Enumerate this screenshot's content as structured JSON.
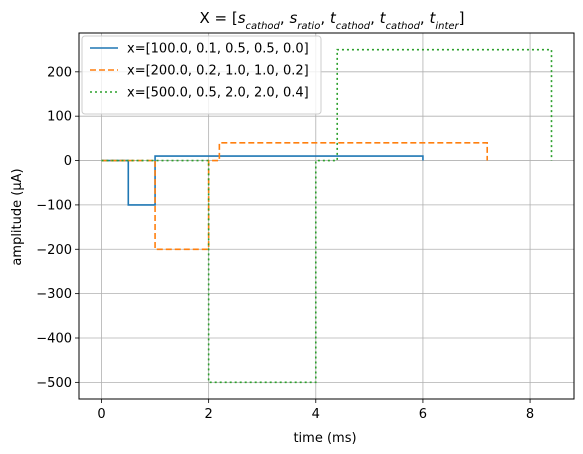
{
  "chart_data": {
    "type": "line",
    "title_parts": [
      {
        "text": "X = [",
        "italic": false,
        "sub": false
      },
      {
        "text": "s",
        "italic": true,
        "sub": false
      },
      {
        "text": "cathod",
        "italic": true,
        "sub": true
      },
      {
        "text": ", ",
        "italic": false,
        "sub": false
      },
      {
        "text": "s",
        "italic": true,
        "sub": false
      },
      {
        "text": "ratio",
        "italic": true,
        "sub": true
      },
      {
        "text": ", ",
        "italic": false,
        "sub": false
      },
      {
        "text": "t",
        "italic": true,
        "sub": false
      },
      {
        "text": "cathod",
        "italic": true,
        "sub": true
      },
      {
        "text": ", ",
        "italic": false,
        "sub": false
      },
      {
        "text": "t",
        "italic": true,
        "sub": false
      },
      {
        "text": "cathod",
        "italic": true,
        "sub": true
      },
      {
        "text": ", ",
        "italic": false,
        "sub": false
      },
      {
        "text": "t",
        "italic": true,
        "sub": false
      },
      {
        "text": "inter",
        "italic": true,
        "sub": true
      },
      {
        "text": "]",
        "italic": false,
        "sub": false
      }
    ],
    "xlabel": "time (ms)",
    "ylabel": "amplitude (μA)",
    "xlim": [
      -0.42,
      8.82
    ],
    "ylim": [
      -537.5,
      287.5
    ],
    "xticks": [
      0,
      2,
      4,
      6,
      8
    ],
    "yticks": [
      -500,
      -400,
      -300,
      -200,
      -100,
      0,
      100,
      200
    ],
    "xtick_labels": [
      "0",
      "2",
      "4",
      "6",
      "8"
    ],
    "ytick_labels": [
      "−500",
      "−400",
      "−300",
      "−200",
      "−100",
      "0",
      "100",
      "200"
    ],
    "grid": true,
    "legend_position": "top-left",
    "series": [
      {
        "name": "x=[100.0, 0.1, 0.5, 0.5, 0.0]",
        "color": "#1f77b4",
        "dash": "solid",
        "x": [
          0,
          0.5,
          0.5,
          1.0,
          1.0,
          6.0,
          6.0
        ],
        "y": [
          0,
          0,
          -100,
          -100,
          10,
          10,
          0
        ]
      },
      {
        "name": "x=[200.0, 0.2, 1.0, 1.0, 0.2]",
        "color": "#ff7f0e",
        "dash": "dashed",
        "x": [
          0,
          1.0,
          1.0,
          2.0,
          2.0,
          2.2,
          2.2,
          7.2,
          7.2
        ],
        "y": [
          0,
          0,
          -200,
          -200,
          0,
          0,
          40,
          40,
          0
        ]
      },
      {
        "name": "x=[500.0, 0.5, 2.0, 2.0, 0.4]",
        "color": "#2ca02c",
        "dash": "dotted",
        "x": [
          0,
          2.0,
          2.0,
          4.0,
          4.0,
          4.4,
          4.4,
          8.4,
          8.4
        ],
        "y": [
          0,
          0,
          -500,
          -500,
          0,
          0,
          250,
          250,
          0
        ]
      }
    ]
  }
}
